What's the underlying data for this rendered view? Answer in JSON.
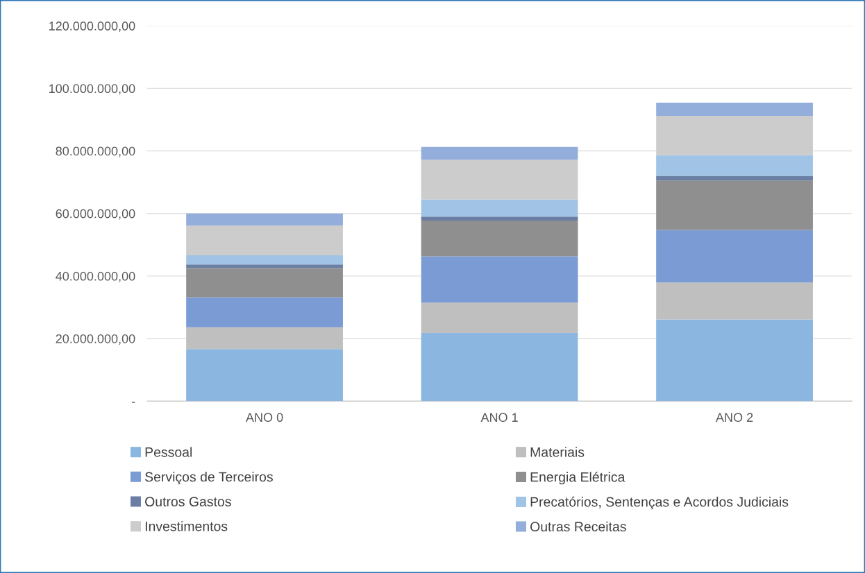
{
  "chart_data": {
    "type": "bar",
    "stacked": true,
    "categories": [
      "ANO 0",
      "ANO 1",
      "ANO 2"
    ],
    "series": [
      {
        "name": "Pessoal",
        "color": "#8ab6e0",
        "values": [
          16600000,
          21800000,
          26100000
        ]
      },
      {
        "name": "Materiais",
        "color": "#bfbfbf",
        "values": [
          7000000,
          9700000,
          11800000
        ]
      },
      {
        "name": "Serviços de Terceiros",
        "color": "#7a9bd4",
        "values": [
          9600000,
          14800000,
          16800000
        ]
      },
      {
        "name": "Energia Elétrica",
        "color": "#8f8f8f",
        "values": [
          9400000,
          11400000,
          15800000
        ]
      },
      {
        "name": "Outros Gastos",
        "color": "#6a7fa3",
        "values": [
          1100000,
          1300000,
          1500000
        ]
      },
      {
        "name": "Precatórios, Sentenças e Acordos Judiciais",
        "color": "#a1c4e6",
        "values": [
          2900000,
          5500000,
          6600000
        ]
      },
      {
        "name": "Investimentos",
        "color": "#cccccc",
        "values": [
          9500000,
          12700000,
          12600000
        ]
      },
      {
        "name": "Outras Receitas",
        "color": "#94aedc",
        "values": [
          3900000,
          4100000,
          4200000
        ]
      }
    ],
    "ylim": [
      0,
      120000000
    ],
    "yticks": [
      {
        "value": 0,
        "label": "-"
      },
      {
        "value": 20000000,
        "label": "20.000.000,00"
      },
      {
        "value": 40000000,
        "label": "40.000.000,00"
      },
      {
        "value": 60000000,
        "label": "60.000.000,00"
      },
      {
        "value": 80000000,
        "label": "80.000.000,00"
      },
      {
        "value": 100000000,
        "label": "100.000.000,00"
      },
      {
        "value": 120000000,
        "label": "120.000.000,00"
      }
    ],
    "grid": "y",
    "legend": "bottom"
  }
}
